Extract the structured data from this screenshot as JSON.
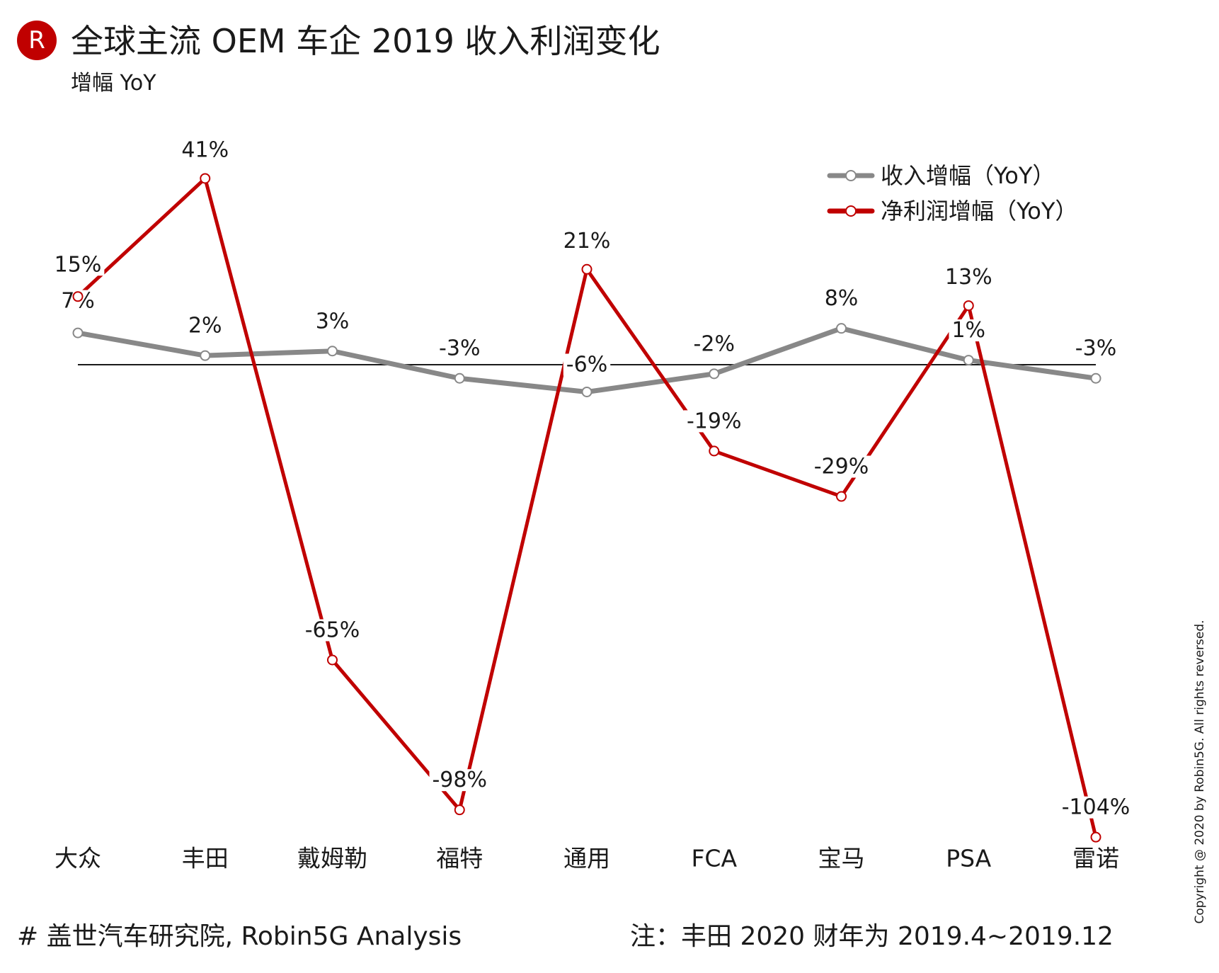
{
  "header": {
    "logo_letter": "R",
    "title": "全球主流 OEM 车企 2019 收入利润变化",
    "subtitle": "增幅 YoY"
  },
  "footer": {
    "source": "# 盖世汽车研究院, Robin5G Analysis",
    "note": "注：丰田 2020 财年为 2019.4~2019.12",
    "copyright": "Copyright @ 2020 by Robin5G. All rights reversed."
  },
  "colors": {
    "revenue": "#888888",
    "profit": "#C00000",
    "zero_line": "#1a1a1a",
    "text": "#1a1a1a"
  },
  "chart_data": {
    "type": "line",
    "title": "全球主流 OEM 车企 2019 收入利润变化",
    "subtitle": "增幅 YoY",
    "xlabel": "",
    "ylabel": "增幅 YoY",
    "categories": [
      "大众",
      "丰田",
      "戴姆勒",
      "福特",
      "通用",
      "FCA",
      "宝马",
      "PSA",
      "雷诺"
    ],
    "series": [
      {
        "name": "收入增幅（YoY）",
        "color": "#888888",
        "values": [
          7,
          2,
          3,
          -3,
          -6,
          -2,
          8,
          1,
          -3
        ],
        "labels": [
          "7%",
          "2%",
          "3%",
          "-3%",
          "-6%",
          "-2%",
          "8%",
          "1%",
          "-3%"
        ]
      },
      {
        "name": "净利润增幅（YoY）",
        "color": "#C00000",
        "values": [
          15,
          41,
          -65,
          -98,
          21,
          -19,
          -29,
          13,
          -104
        ],
        "labels": [
          "15%",
          "41%",
          "-65%",
          "-98%",
          "21%",
          "-19%",
          "-29%",
          "13%",
          "-104%"
        ]
      }
    ],
    "ylim": [
      -104,
      41
    ],
    "grid": false,
    "zero_line": true,
    "legend_position": "top-right"
  }
}
